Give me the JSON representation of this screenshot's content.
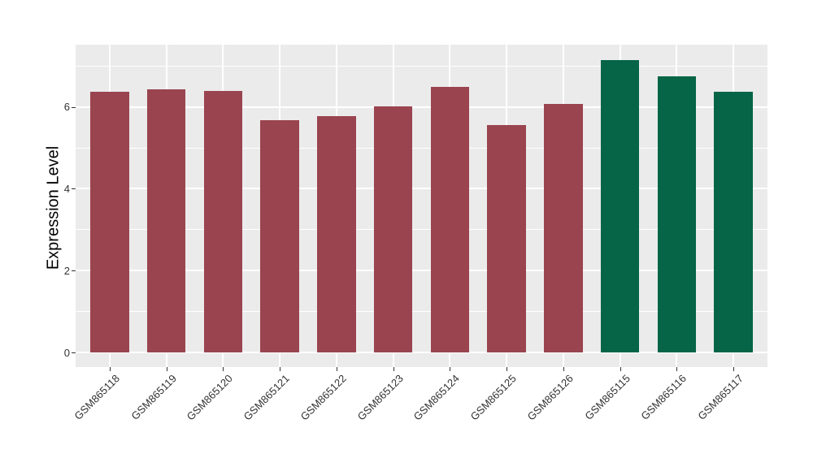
{
  "chart_data": {
    "type": "bar",
    "title": "",
    "xlabel": "",
    "ylabel": "Expression Level",
    "categories": [
      "GSM865118",
      "GSM865119",
      "GSM865120",
      "GSM865121",
      "GSM865122",
      "GSM865123",
      "GSM865124",
      "GSM865125",
      "GSM865126",
      "GSM865115",
      "GSM865116",
      "GSM865117"
    ],
    "values": [
      6.36,
      6.43,
      6.38,
      5.67,
      5.78,
      6.01,
      6.48,
      5.56,
      6.07,
      7.14,
      6.75,
      6.36
    ],
    "colors": [
      "#9A4450",
      "#9A4450",
      "#9A4450",
      "#9A4450",
      "#9A4450",
      "#9A4450",
      "#9A4450",
      "#9A4450",
      "#9A4450",
      "#056546",
      "#056546",
      "#056546"
    ],
    "group_colors": {
      "red_group": "#9A4450",
      "green_group": "#056546"
    },
    "y_ticks": [
      0,
      2,
      4,
      6
    ],
    "y_minor_ticks": [
      1,
      3,
      5,
      7
    ],
    "ylim": [
      -0.36,
      7.52
    ],
    "x_label_angle": 45,
    "legend": "none",
    "grid": true,
    "panel_bg": "#EBEBEB",
    "grid_color": "#FFFFFF",
    "tick_color": "#333333"
  }
}
